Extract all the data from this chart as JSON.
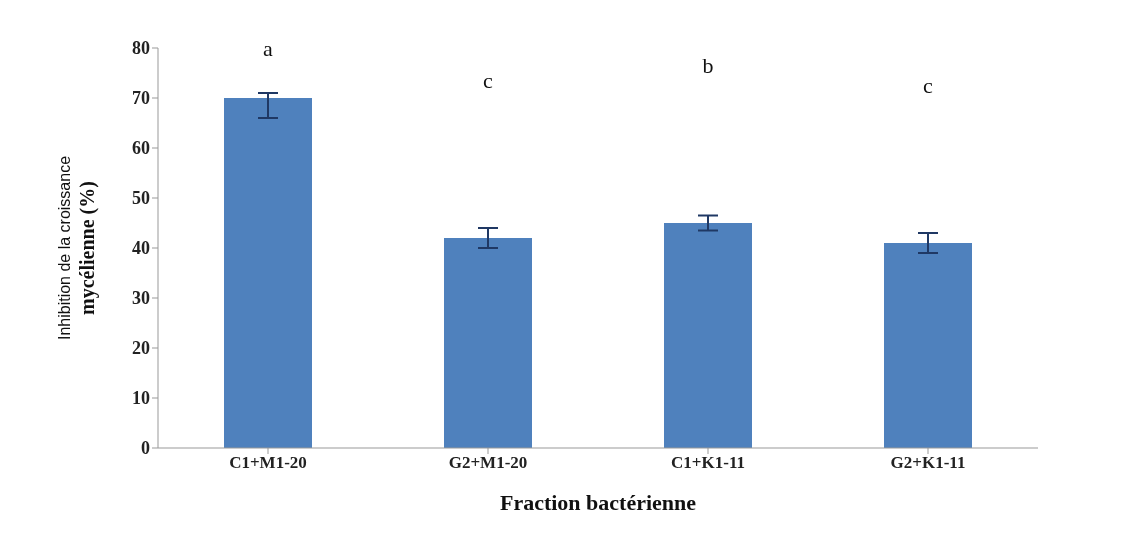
{
  "chart_data": {
    "type": "bar",
    "xlabel": "Fraction bactérienne",
    "ylabel": "Inhibition de la croissance mycélienne (%)",
    "categories": [
      "C1+M1-20",
      "G2+M1-20",
      "C1+K1-11",
      "G2+K1-11"
    ],
    "values": [
      70,
      42,
      45,
      41
    ],
    "errors": [
      [
        66,
        71
      ],
      2,
      1.5,
      2
    ],
    "color": "#4f81bd",
    "ylim": [
      0,
      80
    ],
    "yticks": [
      0,
      10,
      20,
      30,
      40,
      50,
      60,
      70,
      80
    ],
    "grid": false,
    "annotations": [
      "a",
      "c",
      "b",
      "c"
    ]
  }
}
